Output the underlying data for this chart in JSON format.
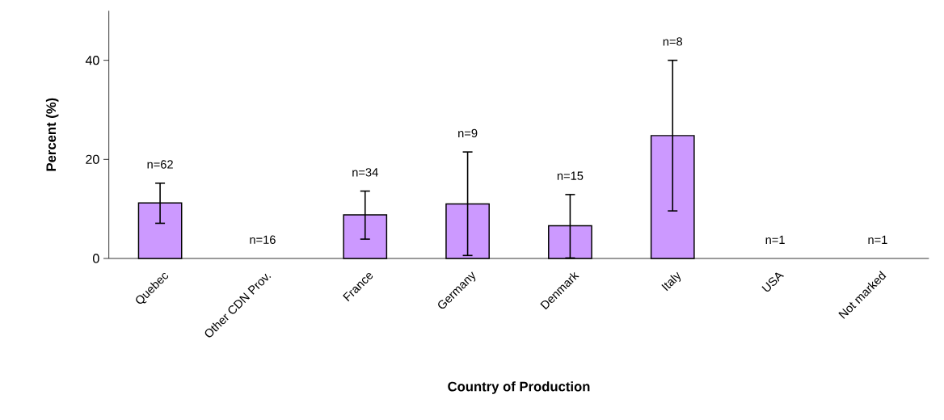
{
  "chart_data": {
    "type": "bar",
    "xlabel": "Country of Production",
    "ylabel": "Percent (%)",
    "categories": [
      "Quebec",
      "Other CDN Prov.",
      "France",
      "Germany",
      "Denmark",
      "Italy",
      "USA",
      "Not marked"
    ],
    "values": [
      11.2,
      0,
      8.8,
      11.0,
      6.6,
      24.8,
      0,
      0
    ],
    "errors": [
      [
        7.1,
        15.2
      ],
      null,
      [
        3.9,
        13.6
      ],
      [
        0.6,
        21.5
      ],
      [
        0.1,
        12.9
      ],
      [
        9.6,
        40.0
      ],
      null,
      null
    ],
    "color": "#cc99ff",
    "ylim": [
      0,
      50
    ],
    "yticks": [
      0,
      20,
      40
    ],
    "annotations": [
      "n=62",
      "n=16",
      "n=34",
      "n=9",
      "n=15",
      "n=8",
      "n=1",
      "n=1"
    ]
  }
}
